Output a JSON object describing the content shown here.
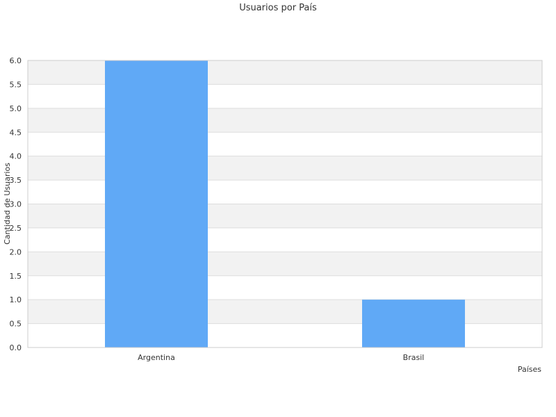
{
  "chart_data": {
    "type": "bar",
    "title": "Usuarios por País",
    "xlabel": "Países",
    "ylabel": "Cantidad de Usuarios",
    "categories": [
      "Argentina",
      "Brasil"
    ],
    "values": [
      6,
      1
    ],
    "ylim": [
      0,
      6
    ],
    "yticks": [
      "0.0",
      "0.5",
      "1.0",
      "1.5",
      "2.0",
      "2.5",
      "3.0",
      "3.5",
      "4.0",
      "4.5",
      "5.0",
      "5.5",
      "6.0"
    ],
    "grid": true,
    "legend": "none",
    "colors": {
      "bar": "#60a9f6",
      "band_alt": "#f2f2f2",
      "band": "#ffffff",
      "gridline": "#dddddd",
      "frame": "#cccccc"
    }
  }
}
